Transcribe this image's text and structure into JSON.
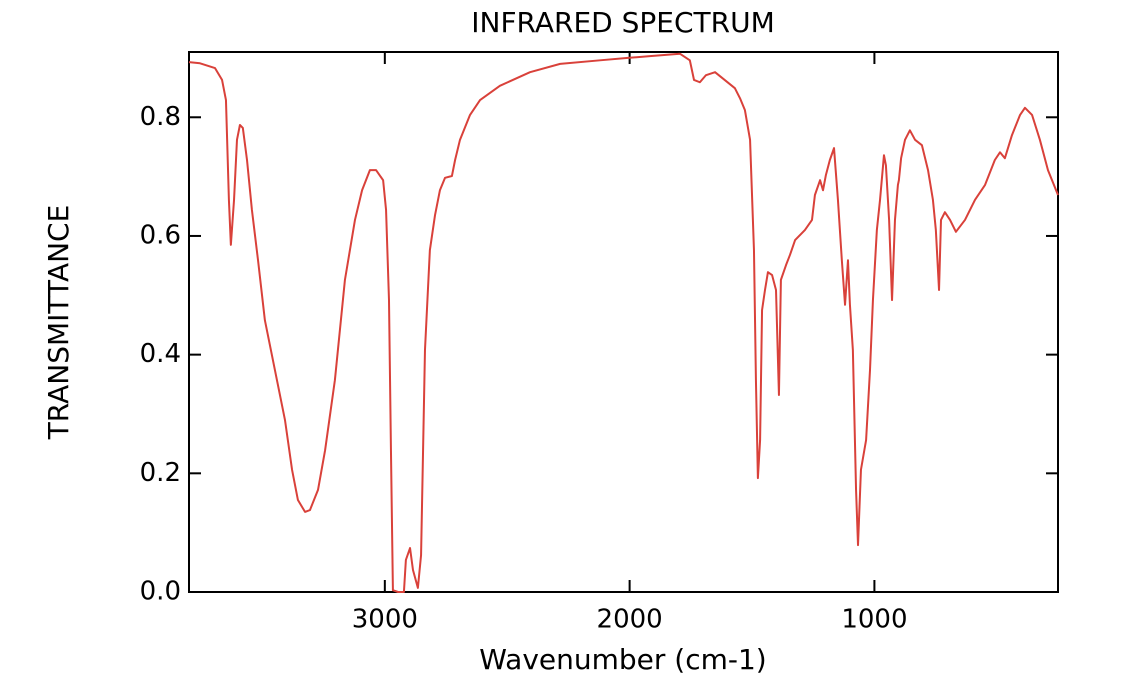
{
  "chart_data": {
    "type": "line",
    "title": "INFRARED SPECTRUM",
    "x_label": "Wavenumber (cm-1)",
    "y_label": "TRANSMITTANCE",
    "color": "#d9413a",
    "xlim": [
      3800,
      250
    ],
    "ylim": [
      0,
      0.91
    ],
    "xticks": [
      3000,
      2000,
      1000
    ],
    "yticks": [
      {
        "value": 0,
        "label": "0.0"
      },
      0.2,
      0.4,
      0.6,
      0.8
    ],
    "x": [
      3800,
      3755,
      3694,
      3665,
      3649,
      3637,
      3629,
      3616,
      3604,
      3592,
      3580,
      3563,
      3543,
      3518,
      3490,
      3449,
      3408,
      3379,
      3355,
      3326,
      3306,
      3273,
      3244,
      3204,
      3163,
      3122,
      3093,
      3061,
      3036,
      3007,
      2995,
      2983,
      2975,
      2967,
      2946,
      2922,
      2914,
      2897,
      2885,
      2865,
      2852,
      2836,
      2816,
      2795,
      2775,
      2754,
      2726,
      2713,
      2693,
      2652,
      2611,
      2530,
      2407,
      2284,
      2121,
      2007,
      1917,
      1794,
      1754,
      1737,
      1713,
      1688,
      1651,
      1570,
      1549,
      1529,
      1508,
      1492,
      1484,
      1476,
      1467,
      1459,
      1447,
      1435,
      1418,
      1402,
      1390,
      1382,
      1361,
      1345,
      1324,
      1284,
      1255,
      1243,
      1222,
      1210,
      1198,
      1182,
      1165,
      1149,
      1133,
      1120,
      1108,
      1100,
      1088,
      1075,
      1067,
      1055,
      1034,
      1018,
      1006,
      990,
      977,
      961,
      953,
      940,
      928,
      916,
      904,
      900,
      891,
      875,
      855,
      834,
      806,
      781,
      761,
      749,
      736,
      728,
      712,
      691,
      667,
      630,
      589,
      548,
      508,
      487,
      467,
      438,
      405,
      385,
      356,
      324,
      291,
      250
    ],
    "values": [
      0.893,
      0.891,
      0.883,
      0.863,
      0.829,
      0.661,
      0.585,
      0.661,
      0.762,
      0.787,
      0.782,
      0.728,
      0.644,
      0.559,
      0.458,
      0.374,
      0.29,
      0.206,
      0.155,
      0.135,
      0.138,
      0.172,
      0.239,
      0.357,
      0.526,
      0.627,
      0.677,
      0.711,
      0.711,
      0.694,
      0.644,
      0.492,
      0.239,
      0.003,
      0,
      0,
      0.054,
      0.074,
      0.037,
      0.007,
      0.062,
      0.408,
      0.576,
      0.635,
      0.677,
      0.698,
      0.701,
      0.728,
      0.762,
      0.804,
      0.829,
      0.853,
      0.876,
      0.89,
      0.896,
      0.9,
      0.903,
      0.907,
      0.896,
      0.863,
      0.859,
      0.871,
      0.876,
      0.849,
      0.832,
      0.812,
      0.762,
      0.576,
      0.357,
      0.192,
      0.256,
      0.475,
      0.509,
      0.539,
      0.534,
      0.509,
      0.332,
      0.526,
      0.551,
      0.568,
      0.593,
      0.61,
      0.627,
      0.669,
      0.694,
      0.677,
      0.703,
      0.728,
      0.748,
      0.661,
      0.559,
      0.484,
      0.559,
      0.484,
      0.408,
      0.172,
      0.079,
      0.206,
      0.256,
      0.374,
      0.492,
      0.61,
      0.661,
      0.736,
      0.719,
      0.627,
      0.492,
      0.627,
      0.686,
      0.694,
      0.731,
      0.762,
      0.778,
      0.762,
      0.753,
      0.711,
      0.661,
      0.61,
      0.509,
      0.627,
      0.64,
      0.627,
      0.607,
      0.627,
      0.661,
      0.686,
      0.728,
      0.741,
      0.731,
      0.77,
      0.804,
      0.816,
      0.804,
      0.762,
      0.711,
      0.669
    ]
  }
}
